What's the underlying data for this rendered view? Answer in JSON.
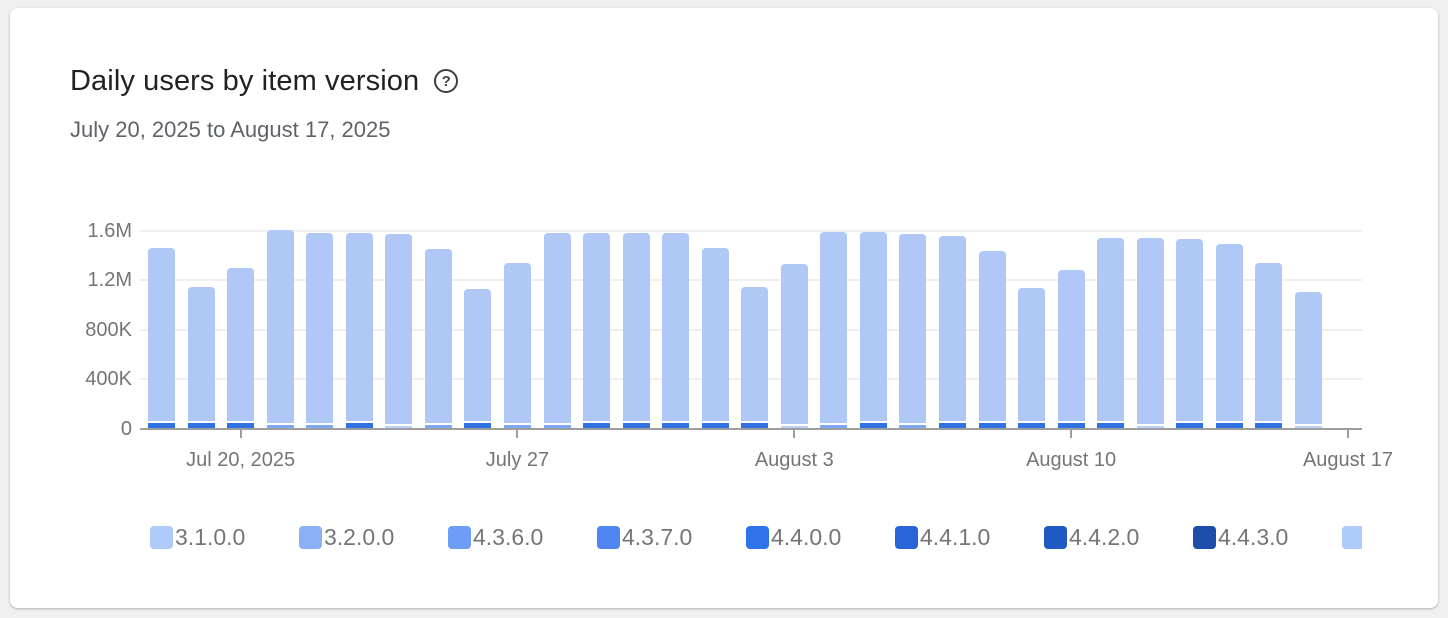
{
  "header": {
    "title": "Daily users by item version",
    "help_icon": "?",
    "date_range": "July 20, 2025 to August 17, 2025"
  },
  "colors": {
    "page_background": "#f0f0f1",
    "card_background": "#ffffff",
    "bar_main": "#afc8f6",
    "axis": "#9e9e9e",
    "gridline": "#efefef",
    "title_text": "#202124",
    "subtitle_text": "#5f6368",
    "axis_label_text": "#757575",
    "legend_label_text": "#757575"
  },
  "chart_data": {
    "type": "bar",
    "stacked": true,
    "title": "Daily users by item version",
    "subtitle": "July 20, 2025 to August 17, 2025",
    "xlabel": "",
    "ylabel": "",
    "ylim": [
      0,
      1600000
    ],
    "grid": true,
    "legend_position": "bottom",
    "y_axis": [
      {
        "label": "0",
        "value": 0
      },
      {
        "label": "400K",
        "value": 400000
      },
      {
        "label": "800K",
        "value": 800000
      },
      {
        "label": "1.2M",
        "value": 1200000
      },
      {
        "label": "1.6M",
        "value": 1600000
      }
    ],
    "x_axis": [
      {
        "label": "Jul 20, 2025",
        "day_index": 2
      },
      {
        "label": "July 27",
        "day_index": 9
      },
      {
        "label": "August 3",
        "day_index": 16
      },
      {
        "label": "August 10",
        "day_index": 23
      },
      {
        "label": "August 17",
        "day_index": 30
      }
    ],
    "days": [
      {
        "date": "Jul 18",
        "total": 1450000,
        "base_value": 40000,
        "base_color": "#2f72e3"
      },
      {
        "date": "Jul 19",
        "total": 1140000,
        "base_value": 40000,
        "base_color": "#2f72e3"
      },
      {
        "date": "Jul 20",
        "total": 1290000,
        "base_value": 40000,
        "base_color": "#2f72e3"
      },
      {
        "date": "Jul 21",
        "total": 1600000,
        "base_value": 28000,
        "base_color": "#7fa8f3"
      },
      {
        "date": "Jul 22",
        "total": 1575000,
        "base_value": 28000,
        "base_color": "#7fa8f3"
      },
      {
        "date": "Jul 23",
        "total": 1575000,
        "base_value": 40000,
        "base_color": "#2f72e3"
      },
      {
        "date": "Jul 24",
        "total": 1560000,
        "base_value": 20000,
        "base_color": "#bcd0f9"
      },
      {
        "date": "Jul 25",
        "total": 1440000,
        "base_value": 28000,
        "base_color": "#7fa8f3"
      },
      {
        "date": "Jul 26",
        "total": 1120000,
        "base_value": 40000,
        "base_color": "#2f72e3"
      },
      {
        "date": "Jul 27",
        "total": 1330000,
        "base_value": 28000,
        "base_color": "#7fa8f3"
      },
      {
        "date": "Jul 28",
        "total": 1570000,
        "base_value": 28000,
        "base_color": "#7fa8f3"
      },
      {
        "date": "Jul 29",
        "total": 1570000,
        "base_value": 40000,
        "base_color": "#2f72e3"
      },
      {
        "date": "Jul 30",
        "total": 1570000,
        "base_value": 40000,
        "base_color": "#2f72e3"
      },
      {
        "date": "Jul 31",
        "total": 1570000,
        "base_value": 40000,
        "base_color": "#2f72e3"
      },
      {
        "date": "Aug 1",
        "total": 1450000,
        "base_value": 40000,
        "base_color": "#2f72e3"
      },
      {
        "date": "Aug 2",
        "total": 1140000,
        "base_value": 40000,
        "base_color": "#2f72e3"
      },
      {
        "date": "Aug 3",
        "total": 1320000,
        "base_value": 20000,
        "base_color": "#bcd0f9"
      },
      {
        "date": "Aug 4",
        "total": 1580000,
        "base_value": 28000,
        "base_color": "#7fa8f3"
      },
      {
        "date": "Aug 5",
        "total": 1580000,
        "base_value": 40000,
        "base_color": "#2f72e3"
      },
      {
        "date": "Aug 6",
        "total": 1560000,
        "base_value": 28000,
        "base_color": "#7fa8f3"
      },
      {
        "date": "Aug 7",
        "total": 1550000,
        "base_value": 40000,
        "base_color": "#2f72e3"
      },
      {
        "date": "Aug 8",
        "total": 1430000,
        "base_value": 40000,
        "base_color": "#2f72e3"
      },
      {
        "date": "Aug 9",
        "total": 1130000,
        "base_value": 40000,
        "base_color": "#2f72e3"
      },
      {
        "date": "Aug 10",
        "total": 1270000,
        "base_value": 40000,
        "base_color": "#2f72e3"
      },
      {
        "date": "Aug 11",
        "total": 1530000,
        "base_value": 40000,
        "base_color": "#2f72e3"
      },
      {
        "date": "Aug 12",
        "total": 1530000,
        "base_value": 20000,
        "base_color": "#bcd0f9"
      },
      {
        "date": "Aug 13",
        "total": 1520000,
        "base_value": 40000,
        "base_color": "#2f72e3"
      },
      {
        "date": "Aug 14",
        "total": 1480000,
        "base_value": 40000,
        "base_color": "#2f72e3"
      },
      {
        "date": "Aug 15",
        "total": 1330000,
        "base_value": 40000,
        "base_color": "#2f72e3"
      },
      {
        "date": "Aug 16",
        "total": 1100000,
        "base_value": 20000,
        "base_color": "#bcd0f9"
      }
    ],
    "legend": [
      {
        "label": "3.1.0.0",
        "color": "#aecbfa"
      },
      {
        "label": "3.2.0.0",
        "color": "#8cb0f6"
      },
      {
        "label": "4.3.6.0",
        "color": "#6d9df4"
      },
      {
        "label": "4.3.7.0",
        "color": "#4d86f0"
      },
      {
        "label": "4.4.0.0",
        "color": "#2f73eb"
      },
      {
        "label": "4.4.1.0",
        "color": "#2765d9"
      },
      {
        "label": "4.4.2.0",
        "color": "#1f5ac4"
      },
      {
        "label": "4.4.3.0",
        "color": "#1c4da9"
      },
      {
        "label": "",
        "color": "#aecbfa"
      }
    ]
  }
}
